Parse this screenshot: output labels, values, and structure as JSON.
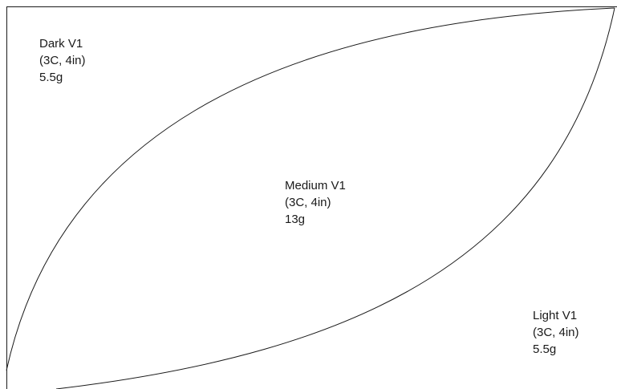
{
  "regions": {
    "dark": {
      "name": "Dark V1",
      "spec": "(3C, 4in)",
      "weight": "5.5g"
    },
    "medium": {
      "name": "Medium V1",
      "spec": "(3C, 4in)",
      "weight": "13g"
    },
    "light": {
      "name": "Light V1",
      "spec": "(3C, 4in)",
      "weight": "5.5g"
    }
  },
  "colors": {
    "line": "#1a1a1a",
    "background": "#ffffff"
  }
}
